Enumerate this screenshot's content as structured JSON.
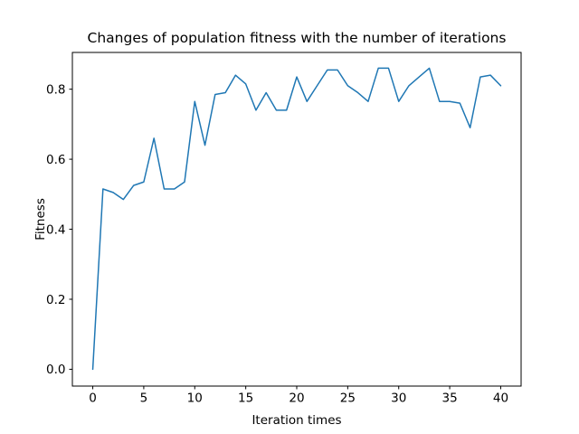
{
  "chart_data": {
    "type": "line",
    "title": "Changes of population fitness with the number of iterations",
    "xlabel": "Iteration times",
    "ylabel": "Fitness",
    "x": [
      0,
      1,
      2,
      3,
      4,
      5,
      6,
      7,
      8,
      9,
      10,
      11,
      12,
      13,
      14,
      15,
      16,
      17,
      18,
      19,
      20,
      21,
      22,
      23,
      24,
      25,
      26,
      27,
      28,
      29,
      30,
      31,
      32,
      33,
      34,
      35,
      36,
      37,
      38,
      39,
      40
    ],
    "y": [
      0.0,
      0.515,
      0.505,
      0.485,
      0.525,
      0.535,
      0.66,
      0.515,
      0.515,
      0.535,
      0.765,
      0.64,
      0.785,
      0.79,
      0.84,
      0.815,
      0.74,
      0.79,
      0.74,
      0.74,
      0.835,
      0.765,
      0.81,
      0.855,
      0.855,
      0.81,
      0.79,
      0.765,
      0.86,
      0.86,
      0.765,
      0.81,
      0.835,
      0.86,
      0.765,
      0.765,
      0.76,
      0.69,
      0.835,
      0.84,
      0.81
    ],
    "xlim": [
      -2,
      42
    ],
    "ylim": [
      -0.048,
      0.905
    ],
    "xtick_values": [
      0,
      5,
      10,
      15,
      20,
      25,
      30,
      35,
      40
    ],
    "xtick_labels": [
      "0",
      "5",
      "10",
      "15",
      "20",
      "25",
      "30",
      "35",
      "40"
    ],
    "ytick_values": [
      0.0,
      0.2,
      0.4,
      0.6,
      0.8
    ],
    "ytick_labels": [
      "0.0",
      "0.2",
      "0.4",
      "0.6",
      "0.8"
    ],
    "line_color": "#1f77b4",
    "line_width": 1.5,
    "spine_color": "#000000",
    "background_color": "#ffffff",
    "grid": false,
    "legend": null
  }
}
